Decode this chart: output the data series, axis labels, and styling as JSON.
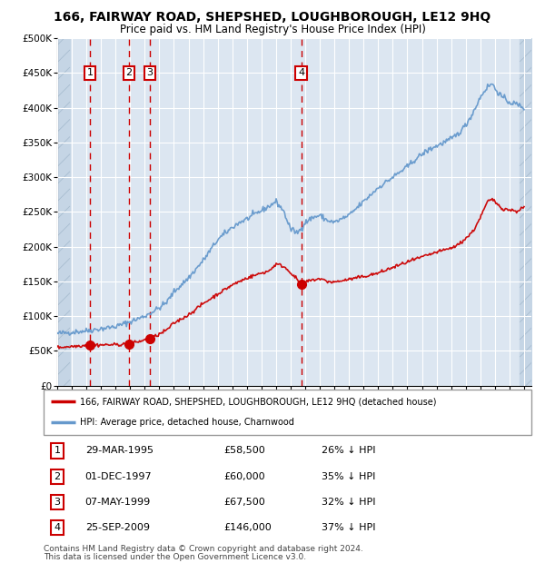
{
  "title": "166, FAIRWAY ROAD, SHEPSHED, LOUGHBOROUGH, LE12 9HQ",
  "subtitle": "Price paid vs. HM Land Registry's House Price Index (HPI)",
  "red_label": "166, FAIRWAY ROAD, SHEPSHED, LOUGHBOROUGH, LE12 9HQ (detached house)",
  "blue_label": "HPI: Average price, detached house, Charnwood",
  "footer1": "Contains HM Land Registry data © Crown copyright and database right 2024.",
  "footer2": "This data is licensed under the Open Government Licence v3.0.",
  "sale_points": [
    {
      "label": "1",
      "date": "29-MAR-1995",
      "price": 58500,
      "hpi_pct": "26% ↓ HPI"
    },
    {
      "label": "2",
      "date": "01-DEC-1997",
      "price": 60000,
      "hpi_pct": "35% ↓ HPI"
    },
    {
      "label": "3",
      "date": "07-MAY-1999",
      "price": 67500,
      "hpi_pct": "32% ↓ HPI"
    },
    {
      "label": "4",
      "date": "25-SEP-2009",
      "price": 146000,
      "hpi_pct": "37% ↓ HPI"
    }
  ],
  "sale_years": [
    1995.24,
    1997.92,
    1999.35,
    2009.73
  ],
  "sale_prices": [
    58500,
    60000,
    67500,
    146000
  ],
  "xlim": [
    1993.0,
    2025.5
  ],
  "ylim": [
    0,
    500000
  ],
  "yticks": [
    0,
    50000,
    100000,
    150000,
    200000,
    250000,
    300000,
    350000,
    400000,
    450000,
    500000
  ],
  "background_color": "#dce6f1",
  "grid_color": "#ffffff",
  "hatch_color": "#c5d5e5",
  "red_line_color": "#cc0000",
  "blue_line_color": "#6699cc",
  "vline_color": "#cc0000",
  "label_box_color": "#cc0000",
  "hpi_anchors": [
    [
      1993.0,
      75000
    ],
    [
      1994.0,
      77000
    ],
    [
      1995.0,
      79000
    ],
    [
      1996.0,
      82000
    ],
    [
      1997.0,
      85000
    ],
    [
      1998.0,
      92000
    ],
    [
      1999.0,
      100000
    ],
    [
      2000.0,
      112000
    ],
    [
      2000.5,
      120000
    ],
    [
      2001.0,
      135000
    ],
    [
      2002.0,
      155000
    ],
    [
      2003.0,
      180000
    ],
    [
      2004.0,
      210000
    ],
    [
      2005.0,
      228000
    ],
    [
      2005.5,
      235000
    ],
    [
      2006.0,
      240000
    ],
    [
      2007.0,
      252000
    ],
    [
      2007.5,
      258000
    ],
    [
      2008.0,
      265000
    ],
    [
      2008.5,
      252000
    ],
    [
      2009.0,
      225000
    ],
    [
      2009.5,
      220000
    ],
    [
      2010.0,
      235000
    ],
    [
      2010.5,
      242000
    ],
    [
      2011.0,
      245000
    ],
    [
      2011.5,
      238000
    ],
    [
      2012.0,
      235000
    ],
    [
      2012.5,
      240000
    ],
    [
      2013.0,
      245000
    ],
    [
      2014.0,
      265000
    ],
    [
      2015.0,
      285000
    ],
    [
      2016.0,
      300000
    ],
    [
      2017.0,
      315000
    ],
    [
      2017.5,
      325000
    ],
    [
      2018.0,
      333000
    ],
    [
      2018.5,
      340000
    ],
    [
      2019.0,
      345000
    ],
    [
      2019.5,
      350000
    ],
    [
      2020.0,
      355000
    ],
    [
      2020.5,
      363000
    ],
    [
      2021.0,
      375000
    ],
    [
      2021.5,
      393000
    ],
    [
      2022.0,
      415000
    ],
    [
      2022.2,
      422000
    ],
    [
      2022.5,
      430000
    ],
    [
      2022.8,
      435000
    ],
    [
      2023.0,
      428000
    ],
    [
      2023.5,
      415000
    ],
    [
      2024.0,
      408000
    ],
    [
      2024.5,
      405000
    ],
    [
      2025.0,
      400000
    ]
  ],
  "red_anchors": [
    [
      1993.0,
      55000
    ],
    [
      1994.0,
      56500
    ],
    [
      1995.24,
      58500
    ],
    [
      1996.5,
      58800
    ],
    [
      1997.0,
      59000
    ],
    [
      1997.92,
      60000
    ],
    [
      1998.5,
      63000
    ],
    [
      1999.35,
      67500
    ],
    [
      2000.0,
      74000
    ],
    [
      2000.5,
      80000
    ],
    [
      2001.0,
      90000
    ],
    [
      2002.0,
      102000
    ],
    [
      2003.0,
      118000
    ],
    [
      2004.0,
      132000
    ],
    [
      2005.0,
      145000
    ],
    [
      2005.5,
      150000
    ],
    [
      2006.0,
      155000
    ],
    [
      2007.0,
      162000
    ],
    [
      2007.5,
      165000
    ],
    [
      2008.0,
      175000
    ],
    [
      2008.5,
      172000
    ],
    [
      2009.0,
      163000
    ],
    [
      2009.73,
      146000
    ],
    [
      2010.0,
      149000
    ],
    [
      2010.5,
      152000
    ],
    [
      2011.0,
      154000
    ],
    [
      2011.5,
      150000
    ],
    [
      2012.0,
      149000
    ],
    [
      2012.5,
      151000
    ],
    [
      2013.0,
      153000
    ],
    [
      2014.0,
      157000
    ],
    [
      2015.0,
      162000
    ],
    [
      2016.0,
      170000
    ],
    [
      2017.0,
      178000
    ],
    [
      2018.0,
      185000
    ],
    [
      2019.0,
      192000
    ],
    [
      2020.0,
      198000
    ],
    [
      2020.5,
      203000
    ],
    [
      2021.0,
      212000
    ],
    [
      2021.5,
      222000
    ],
    [
      2022.0,
      242000
    ],
    [
      2022.5,
      265000
    ],
    [
      2022.8,
      268000
    ],
    [
      2023.0,
      265000
    ],
    [
      2023.5,
      255000
    ],
    [
      2024.0,
      253000
    ],
    [
      2024.5,
      251000
    ],
    [
      2025.0,
      257000
    ]
  ]
}
